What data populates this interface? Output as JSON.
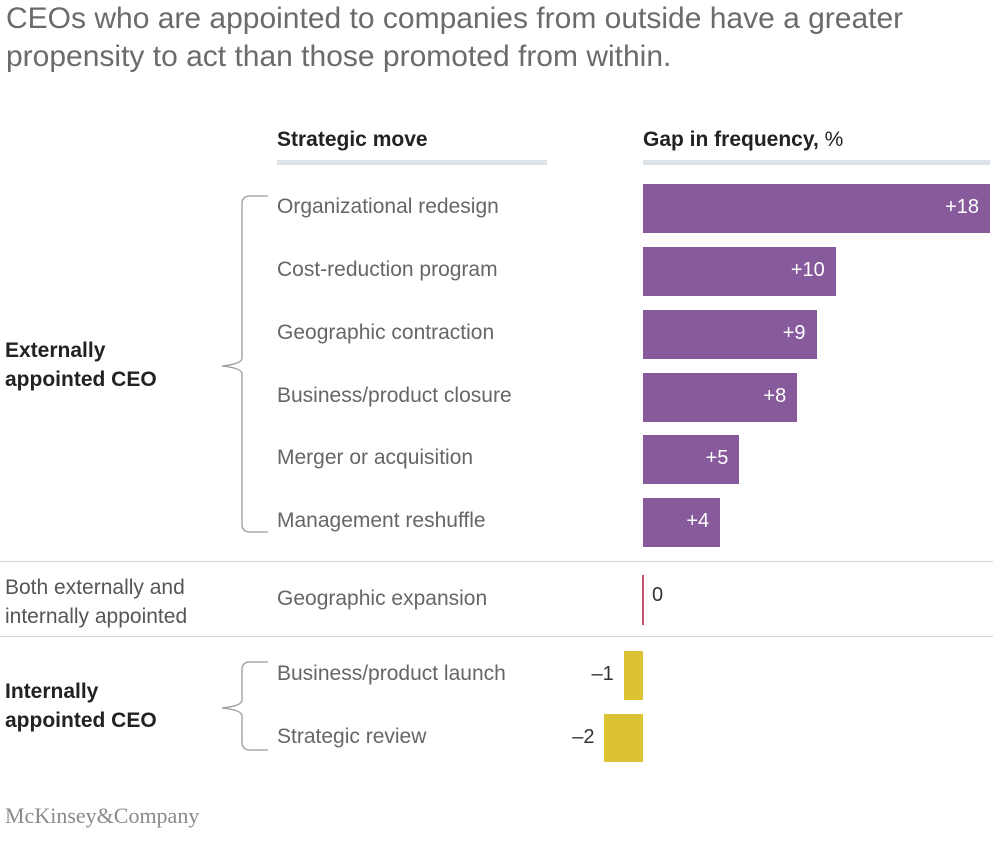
{
  "title": "CEOs who are appointed to companies from outside have a greater propensity to act than those promoted from within.",
  "headers": {
    "move_bold": "Strategic move",
    "gap_bold": "Gap in frequency,",
    "gap_unit": " %"
  },
  "groups": [
    {
      "line1": "Externally",
      "line2": "appointed CEO"
    },
    {
      "line1": "Both externally and",
      "line2": "internally appointed"
    },
    {
      "line1": "Internally",
      "line2": "appointed CEO"
    }
  ],
  "brand": "McKinsey&Company",
  "colors": {
    "positive": "#865a9b",
    "negative": "#dcc333",
    "zero_line": "#c8506e"
  },
  "chart_data": {
    "type": "bar",
    "orientation": "horizontal",
    "categories": [
      "Organizational redesign",
      "Cost-reduction program",
      "Geographic contraction",
      "Business/product closure",
      "Merger or acquisition",
      "Management reshuffle",
      "Geographic expansion",
      "Business/product launch",
      "Strategic review"
    ],
    "values": [
      18,
      10,
      9,
      8,
      5,
      4,
      0,
      -1,
      -2
    ],
    "labels": [
      "+18",
      "+10",
      "+9",
      "+8",
      "+5",
      "+4",
      "0",
      "–1",
      "–2"
    ],
    "groups": [
      "external",
      "external",
      "external",
      "external",
      "external",
      "external",
      "both",
      "internal",
      "internal"
    ],
    "xlabel": "Gap in frequency, %",
    "ylabel": "Strategic move",
    "xlim": [
      -2,
      18
    ],
    "grid": false,
    "legend": "none"
  }
}
